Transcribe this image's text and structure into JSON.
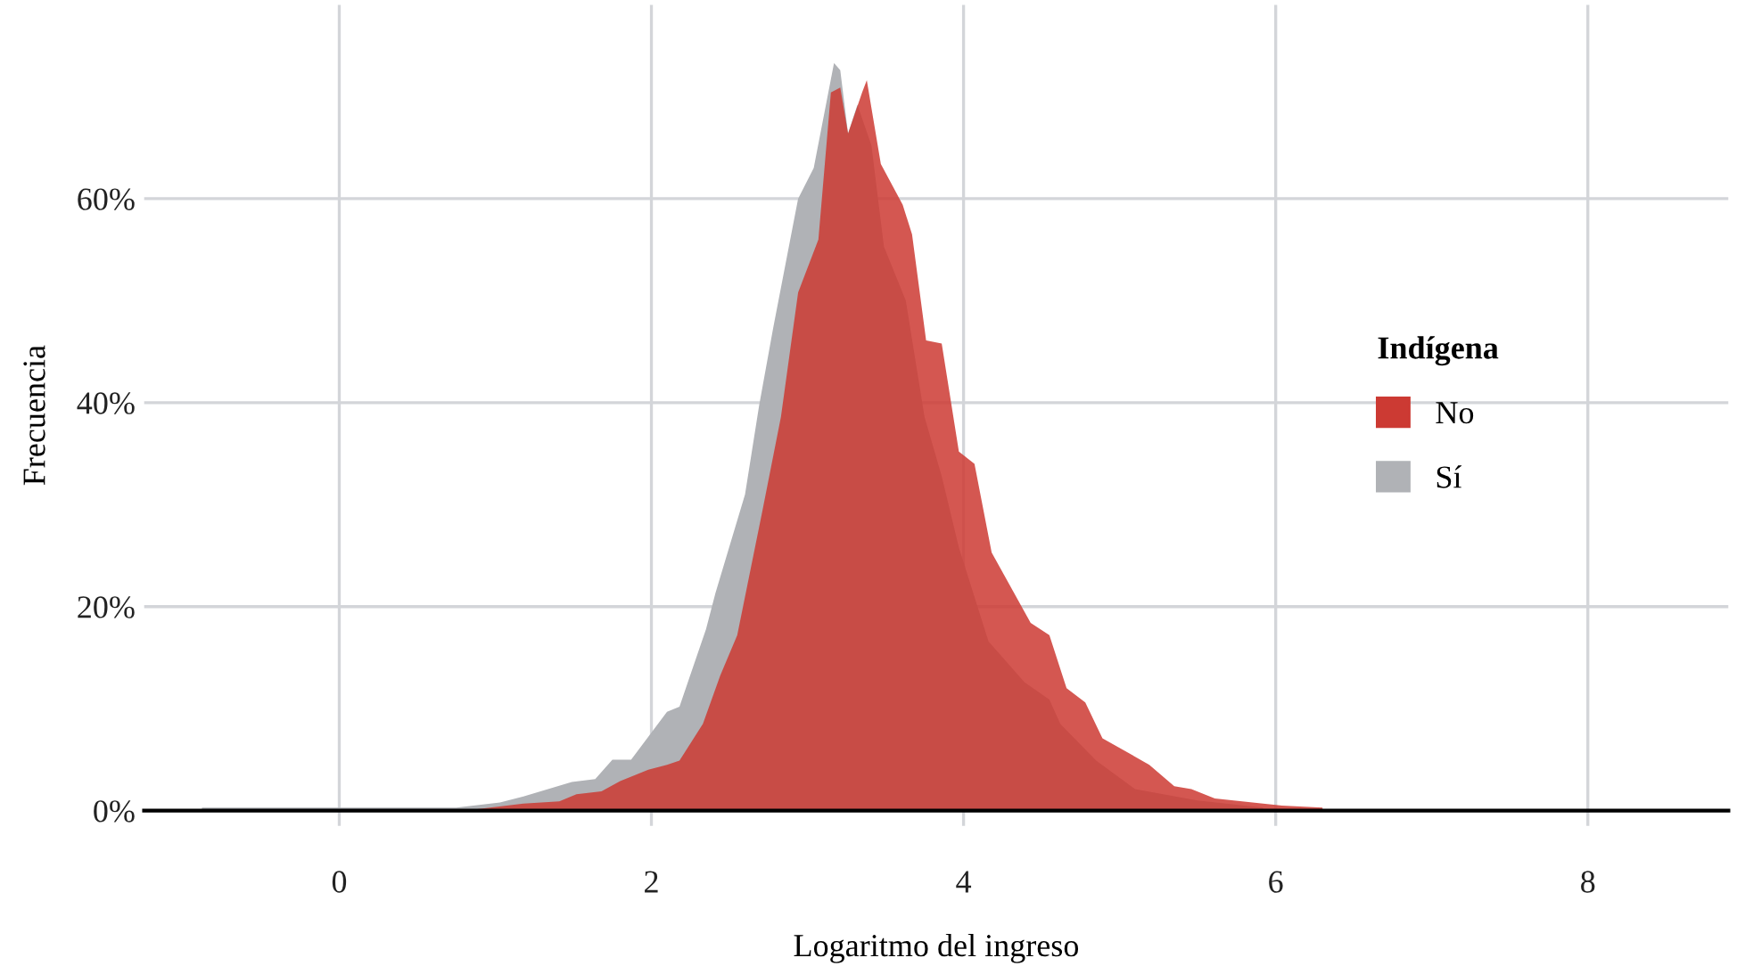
{
  "chart_data": {
    "type": "area",
    "xlabel": "Logaritmo del ingreso",
    "ylabel": "Frecuencia",
    "legend_title": "Indígena",
    "legend": "right",
    "grid": true,
    "xlim": [
      -1.25,
      8.9
    ],
    "ylim": [
      -1.5,
      79
    ],
    "xticks": [
      0,
      2,
      4,
      6,
      8
    ],
    "yticks": [
      {
        "value": 0,
        "label": "0%"
      },
      {
        "value": 20,
        "label": "20%"
      },
      {
        "value": 40,
        "label": "40%"
      },
      {
        "value": 60,
        "label": "60%"
      }
    ],
    "series": [
      {
        "name": "No",
        "color": "#cc3a33",
        "x": [
          0.8,
          1.18,
          1.41,
          1.52,
          1.68,
          1.8,
          1.98,
          2.1,
          2.18,
          2.33,
          2.44,
          2.55,
          2.71,
          2.83,
          2.94,
          3.07,
          3.15,
          3.21,
          3.26,
          3.35,
          3.38,
          3.47,
          3.61,
          3.67,
          3.76,
          3.86,
          3.97,
          4.07,
          4.18,
          4.43,
          4.55,
          4.66,
          4.78,
          4.89,
          5.19,
          5.35,
          5.46,
          5.61,
          6.04,
          6.3
        ],
        "values": [
          0,
          0.7,
          0.9,
          1.6,
          1.9,
          2.9,
          4.0,
          4.5,
          4.9,
          8.5,
          13.2,
          17.2,
          29.3,
          38.6,
          50.8,
          56,
          70.4,
          70.9,
          66.4,
          70.4,
          71.6,
          63.4,
          59.4,
          56.5,
          46.1,
          45.8,
          35.2,
          34,
          25.3,
          18.4,
          17.2,
          12,
          10.6,
          7.1,
          4.5,
          2.4,
          2.1,
          1.2,
          0.5,
          0.3
        ]
      },
      {
        "name": "Sí",
        "color": "#b0b2b6",
        "x": [
          -0.88,
          0.75,
          1.03,
          1.18,
          1.49,
          1.64,
          1.75,
          1.87,
          2.1,
          2.18,
          2.35,
          2.41,
          2.6,
          2.69,
          2.78,
          2.94,
          3.04,
          3.17,
          3.21,
          3.26,
          3.32,
          3.41,
          3.49,
          3.63,
          3.75,
          3.86,
          3.97,
          4.16,
          4.39,
          4.55,
          4.62,
          4.85,
          5.1,
          5.5,
          5.92
        ],
        "values": [
          0.3,
          0.3,
          0.8,
          1.4,
          2.8,
          3.1,
          5.0,
          5.0,
          9.7,
          10.2,
          17.8,
          21.3,
          31,
          39.7,
          47.3,
          60,
          63,
          73.3,
          72.6,
          66.4,
          69.2,
          65.2,
          55.3,
          50,
          38.6,
          32.8,
          25.8,
          16.6,
          12.6,
          10.9,
          8.5,
          4.9,
          2.1,
          1.0,
          0.3
        ]
      }
    ]
  }
}
